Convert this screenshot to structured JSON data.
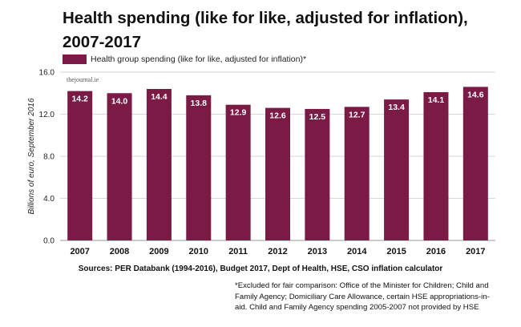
{
  "title": "Health spending (like for like, adjusted for inflation), 2007-2017",
  "legend": {
    "label": "Health group spending (like for like, adjusted for inflation)*",
    "color": "#7a1a45"
  },
  "watermark": "thejournal.ie",
  "sources": "Sources: PER Databank (1994-2016), Budget 2017, Dept of Health, HSE, CSO inflation calculator",
  "footnote": "*Excluded for fair comparison: Office of the Minister for Children; Child and Family Agency; Domiciliary Care Allowance, certain HSE appropriations-in-aid. Child and Family Agency spending 2005-2007 not provided by HSE",
  "chart_data": {
    "type": "bar",
    "categories": [
      "2007",
      "2008",
      "2009",
      "2010",
      "2011",
      "2012",
      "2013",
      "2014",
      "2015",
      "2016",
      "2017"
    ],
    "values": [
      14.2,
      14.0,
      14.4,
      13.8,
      12.9,
      12.6,
      12.5,
      12.7,
      13.4,
      14.1,
      14.6
    ],
    "value_labels": [
      "14.2",
      "14.0",
      "14.4",
      "13.8",
      "12.9",
      "12.6",
      "12.5",
      "12.7",
      "13.4",
      "14.1",
      "14.6"
    ],
    "ylabel": "Billions of euro, September 2016",
    "ylim": [
      0,
      16
    ],
    "yticks": [
      "0.0",
      "4.0",
      "8.0",
      "12.0",
      "16.0"
    ],
    "grid": true,
    "bar_color": "#7a1a45",
    "legend_position": "top-left"
  }
}
